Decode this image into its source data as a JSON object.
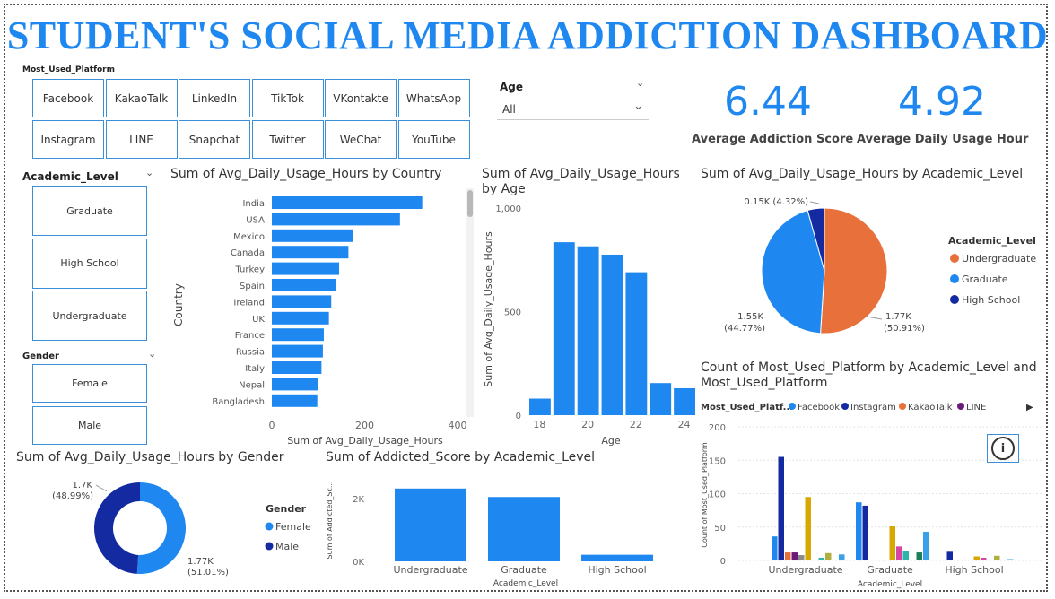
{
  "title": "STUDENT'S SOCIAL MEDIA ADDICTION DASHBOARD",
  "colors": {
    "accent": "#1e88f0",
    "orange": "#e8703a",
    "navy": "#142aa0"
  },
  "platform_slicer": {
    "label": "Most_Used_Platform",
    "items": [
      "Facebook",
      "KakaoTalk",
      "LinkedIn",
      "TikTok",
      "VKontakte",
      "WhatsApp",
      "Instagram",
      "LINE",
      "Snapchat",
      "Twitter",
      "WeChat",
      "YouTube"
    ]
  },
  "age_slicer": {
    "label": "Age",
    "value": "All"
  },
  "kpis": {
    "addiction_value": "6.44",
    "addiction_label": "Average Addiction Score",
    "usage_value": "4.92",
    "usage_label": "Average Daily Usage Hour"
  },
  "academic_slicer": {
    "label": "Academic_Level",
    "items": [
      "Graduate",
      "High School",
      "Undergraduate"
    ]
  },
  "gender_slicer": {
    "label": "Gender",
    "items": [
      "Female",
      "Male"
    ]
  },
  "info_icon": "info-icon",
  "chart_data": [
    {
      "id": "country",
      "type": "bar",
      "orientation": "horizontal",
      "title": "Sum of Avg_Daily_Usage_Hours by Country",
      "xlabel": "Sum of Avg_Daily_Usage_Hours",
      "ylabel": "Country",
      "categories": [
        "India",
        "USA",
        "Mexico",
        "Canada",
        "Turkey",
        "Spain",
        "Ireland",
        "UK",
        "France",
        "Russia",
        "Italy",
        "Nepal",
        "Bangladesh"
      ],
      "values": [
        324,
        276,
        175,
        165,
        145,
        138,
        128,
        123,
        112,
        110,
        107,
        100,
        98
      ],
      "xlim": [
        0,
        400
      ],
      "ticks": [
        "0",
        "200",
        "400"
      ]
    },
    {
      "id": "age",
      "type": "bar",
      "title": "Sum of Avg_Daily_Usage_Hours by Age",
      "xlabel": "Age",
      "ylabel": "Sum of Avg_Daily_Usage_Hours",
      "x": [
        18,
        19,
        20,
        21,
        22,
        23,
        24
      ],
      "values": [
        80,
        835,
        815,
        775,
        690,
        155,
        130
      ],
      "ylim": [
        0,
        1000
      ],
      "yticks": [
        "0",
        "500",
        "1,000"
      ],
      "xticks": [
        "18",
        "20",
        "22",
        "24"
      ]
    },
    {
      "id": "academic_pie",
      "type": "pie",
      "title": "Sum of Avg_Daily_Usage_Hours by Academic_Level",
      "legend_title": "Academic_Level",
      "labels": [
        "Undergraduate",
        "Graduate",
        "High School"
      ],
      "values": [
        1.77,
        1.55,
        0.15
      ],
      "percents": [
        50.91,
        44.77,
        4.32
      ],
      "value_labels": [
        "1.77K",
        "1.55K",
        "0.15K (4.32%)"
      ],
      "pct_labels": [
        "(50.91%)",
        "(44.77%)",
        ""
      ],
      "colors": [
        "#e8703a",
        "#1e88f0",
        "#142aa0"
      ]
    },
    {
      "id": "gender",
      "type": "pie",
      "title": "Sum of Avg_Daily_Usage_Hours by Gender",
      "legend_title": "Gender",
      "labels": [
        "Female",
        "Male"
      ],
      "values": [
        1.77,
        1.7
      ],
      "percents": [
        51.01,
        48.99
      ],
      "value_labels": [
        "1.77K",
        "1.7K"
      ],
      "pct_labels": [
        "(51.01%)",
        "(48.99%)"
      ],
      "colors": [
        "#1e88f0",
        "#142aa0"
      ]
    },
    {
      "id": "addicted",
      "type": "bar",
      "title": "Sum of Addicted_Score by Academic_Level",
      "xlabel": "Academic_Level",
      "ylabel": "Sum of Addicted_Sc...",
      "categories": [
        "Undergraduate",
        "Graduate",
        "High School"
      ],
      "values": [
        2320,
        2050,
        210
      ],
      "ylim": [
        0,
        2600
      ],
      "yticks": [
        "0K",
        "2K"
      ]
    },
    {
      "id": "platform",
      "type": "bar",
      "title": "Count of Most_Used_Platform by Academic_Level and Most_Used_Platform",
      "xlabel": "Academic_Level",
      "ylabel": "Count of Most_Used_Platform",
      "legend_title": "Most_Used_Platf...",
      "legend_items": [
        "Facebook",
        "Instagram",
        "KakaoTalk",
        "LINE"
      ],
      "categories": [
        "Undergraduate",
        "Graduate",
        "High School"
      ],
      "ylim": [
        0,
        200
      ],
      "yticks": [
        "0",
        "50",
        "100",
        "150",
        "200"
      ],
      "series": [
        {
          "name": "Facebook",
          "color": "#1e88f0",
          "values": [
            36,
            87,
            0
          ]
        },
        {
          "name": "Instagram",
          "color": "#142aa0",
          "values": [
            155,
            82,
            13
          ]
        },
        {
          "name": "KakaoTalk",
          "color": "#e8703a",
          "values": [
            12,
            0,
            0
          ]
        },
        {
          "color": "#6b1a7a",
          "values": [
            12,
            0,
            0
          ]
        },
        {
          "color": "#8a8a8a",
          "values": [
            8,
            0,
            0
          ]
        },
        {
          "color": "#d8a800",
          "values": [
            95,
            51,
            6
          ]
        },
        {
          "color": "#d646a4",
          "values": [
            0,
            21,
            4
          ]
        },
        {
          "color": "#2cb5a8",
          "values": [
            4,
            14,
            0
          ]
        },
        {
          "color": "#b0b040",
          "values": [
            11,
            0,
            7
          ]
        },
        {
          "color": "#1f7f5a",
          "values": [
            0,
            12,
            0
          ]
        },
        {
          "color": "#3aa0e8",
          "values": [
            9,
            43,
            2
          ]
        }
      ]
    }
  ]
}
